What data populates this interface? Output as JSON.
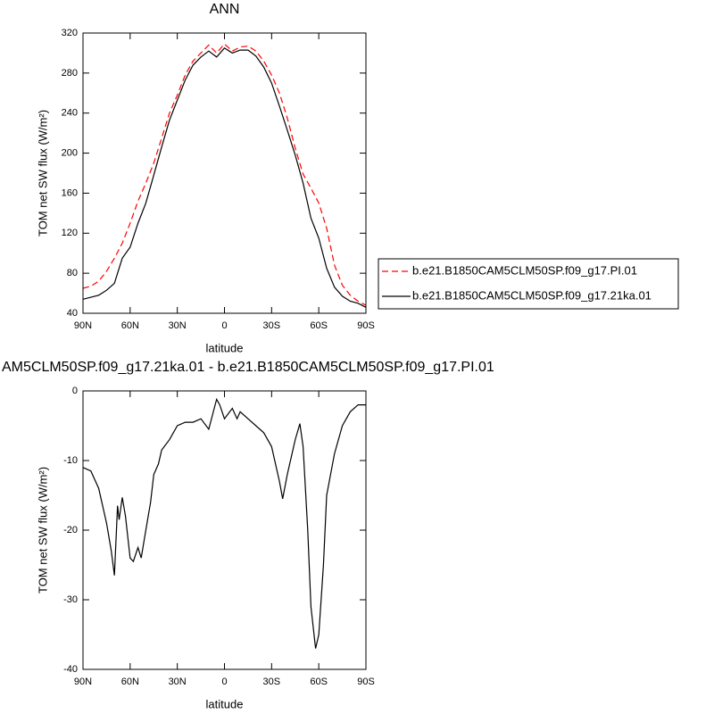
{
  "chart_data": [
    {
      "type": "line",
      "title": "ANN",
      "x_label": "latitude",
      "y_label": "TOM net SW flux (W/m²)",
      "x": [
        90,
        85,
        80,
        75,
        70,
        65,
        60,
        55,
        50,
        45,
        40,
        35,
        30,
        25,
        20,
        15,
        10,
        5,
        0,
        -5,
        -10,
        -15,
        -20,
        -25,
        -30,
        -35,
        -40,
        -45,
        -50,
        -55,
        -60,
        -65,
        -70,
        -75,
        -80,
        -85,
        -90
      ],
      "series": [
        {
          "name": "b.e21.B1850CAM5CLM50SP.f09_g17.PI.01",
          "color": "#ff0000",
          "line_style": "dashed",
          "values": [
            65,
            67,
            72,
            82,
            95,
            110,
            130,
            152,
            170,
            190,
            215,
            240,
            258,
            278,
            292,
            300,
            308,
            300,
            309,
            302,
            306,
            307,
            302,
            292,
            278,
            260,
            235,
            205,
            179,
            165,
            150,
            125,
            88,
            68,
            58,
            52,
            48
          ]
        },
        {
          "name": "b.e21.B1850CAM5CLM50SP.f09_g17.21ka.01",
          "color": "#000000",
          "line_style": "solid",
          "values": [
            54,
            56,
            58,
            63,
            70,
            95,
            106,
            130,
            150,
            178,
            206,
            233,
            253,
            273,
            288,
            296,
            302,
            296,
            305,
            300,
            303,
            303,
            297,
            286,
            270,
            247,
            223,
            198,
            170,
            135,
            115,
            85,
            66,
            57,
            52,
            50,
            46
          ]
        }
      ],
      "xlim": [
        90,
        -90
      ],
      "xticks": [
        {
          "value": 90,
          "label": "90N"
        },
        {
          "value": 60,
          "label": "60N"
        },
        {
          "value": 30,
          "label": "30N"
        },
        0,
        {
          "value": -30,
          "label": "30S"
        },
        {
          "value": -60,
          "label": "60S"
        },
        {
          "value": -90,
          "label": "90S"
        }
      ],
      "ylim": [
        40,
        320
      ],
      "yticks": [
        40,
        80,
        120,
        160,
        200,
        240,
        280,
        320
      ],
      "legend": "right"
    },
    {
      "type": "line",
      "title": "AM5CLM50SP.f09_g17.21ka.01 - b.e21.B1850CAM5CLM50SP.f09_g17.PI.01",
      "x_label": "latitude",
      "y_label": "TOM net SW flux (W/m²)",
      "x": [
        90,
        85,
        80,
        75,
        72,
        70,
        68,
        67,
        65,
        63,
        60,
        58,
        55,
        53,
        50,
        47,
        45,
        42,
        40,
        35,
        30,
        25,
        20,
        15,
        10,
        5,
        3,
        0,
        -5,
        -8,
        -10,
        -15,
        -20,
        -25,
        -30,
        -35,
        -37,
        -40,
        -45,
        -48,
        -50,
        -53,
        -55,
        -58,
        -60,
        -63,
        -65,
        -70,
        -75,
        -80,
        -85,
        -90
      ],
      "series": [
        {
          "color": "#000000",
          "line_style": "solid",
          "values": [
            -11,
            -11.5,
            -14,
            -19,
            -23,
            -26.5,
            -16.5,
            -18.5,
            -15.3,
            -18,
            -24,
            -24.5,
            -22.5,
            -24,
            -20,
            -16,
            -12,
            -10.5,
            -8.5,
            -7,
            -5,
            -4.5,
            -4.5,
            -4,
            -5.5,
            -1.2,
            -2,
            -4,
            -2.5,
            -4,
            -3,
            -4,
            -5,
            -6,
            -8,
            -13,
            -15.5,
            -12,
            -7,
            -4.7,
            -8,
            -20,
            -31,
            -37,
            -35,
            -25,
            -15,
            -9,
            -5,
            -3,
            -2,
            -2
          ]
        }
      ],
      "xlim": [
        90,
        -90
      ],
      "xticks": [
        {
          "value": 90,
          "label": "90N"
        },
        {
          "value": 60,
          "label": "60N"
        },
        {
          "value": 30,
          "label": "30N"
        },
        0,
        {
          "value": -30,
          "label": "30S"
        },
        {
          "value": -60,
          "label": "60S"
        },
        {
          "value": -90,
          "label": "90S"
        }
      ],
      "ylim": [
        -40,
        0
      ],
      "yticks": [
        -40,
        -30,
        -20,
        -10,
        0
      ]
    }
  ]
}
